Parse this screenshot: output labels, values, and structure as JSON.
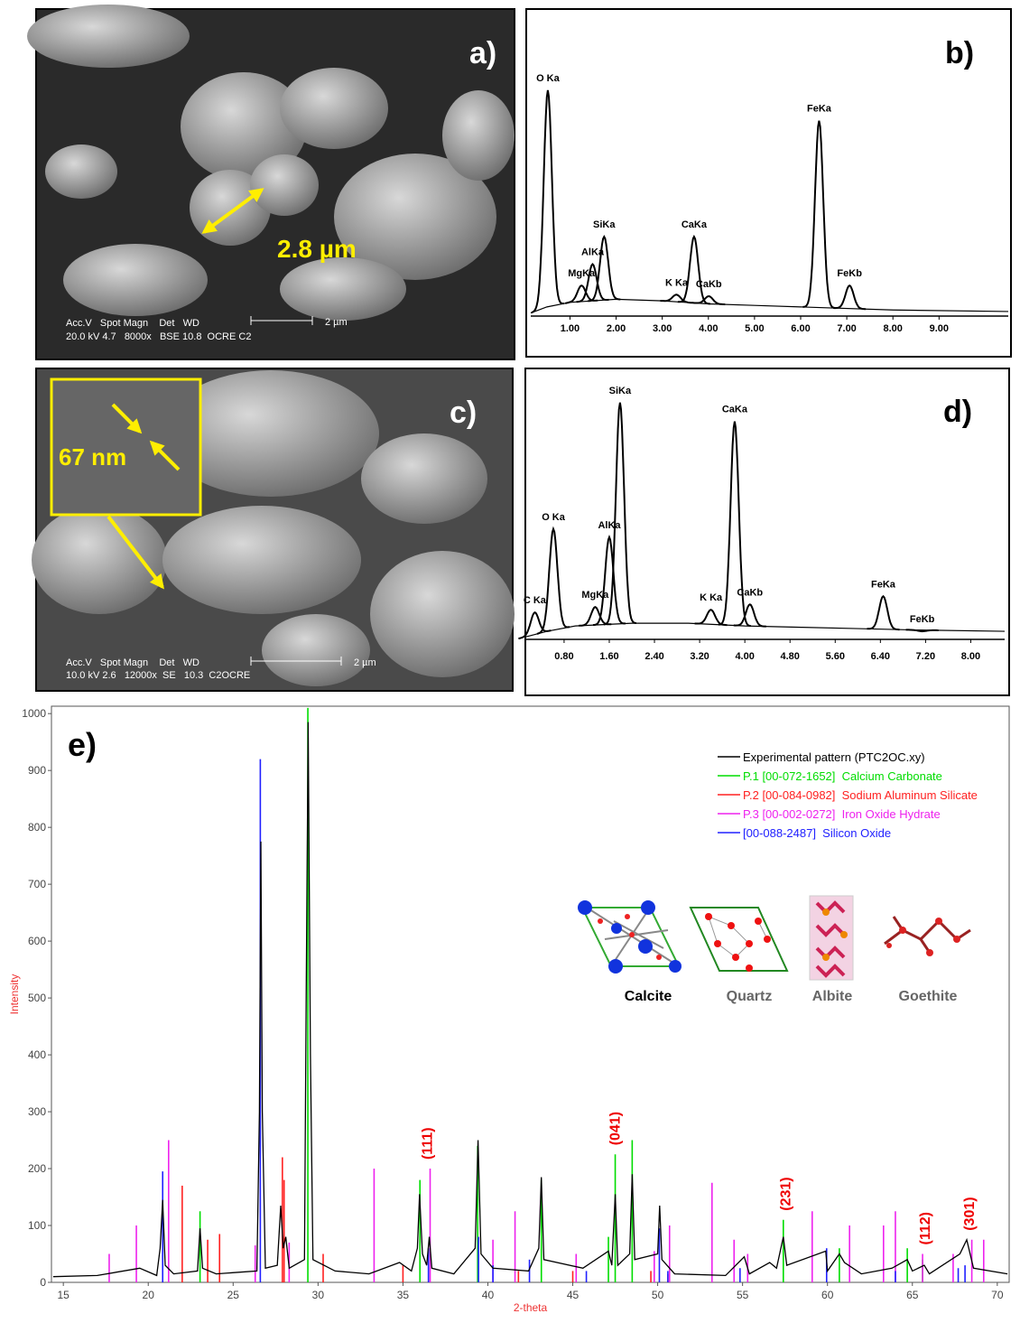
{
  "panels": {
    "a": {
      "label": "a)",
      "scale_text": "2.8 µm",
      "info_head": "Acc.V   Spot Magn    Det   WD",
      "info_values": "20.0 kV 4.7   8000x   BSE 10.8  OCRE C2",
      "scale_bar": "2 µm"
    },
    "c": {
      "label": "c)",
      "scale_text": "67 nm",
      "info_head": "Acc.V   Spot Magn    Det   WD",
      "info_values": "10.0 kV 2.6   12000x  SE   10.3  C2OCRE",
      "scale_bar": "2 µm"
    }
  },
  "chart_data": [
    {
      "type": "spectrum",
      "panel_label": "b)",
      "xlim": [
        0.15,
        10.5
      ],
      "ylim": [
        0,
        100
      ],
      "xticks": [
        {
          "value": 1,
          "label": "1.00"
        },
        {
          "value": 2,
          "label": "2.00"
        },
        {
          "value": 3,
          "label": "3.00"
        },
        {
          "value": 4,
          "label": "4.00"
        },
        {
          "value": 5,
          "label": "5.00"
        },
        {
          "value": 6,
          "label": "6.00"
        },
        {
          "value": 7,
          "label": "7.00"
        },
        {
          "value": 8,
          "label": "8.00"
        },
        {
          "value": 9,
          "label": "9.00"
        }
      ],
      "background": {
        "x": [
          0.15,
          0.5,
          1,
          2,
          3,
          4,
          5,
          6,
          8,
          10.5
        ],
        "values": [
          1,
          3,
          4.5,
          5.5,
          5,
          4,
          3.5,
          3,
          2,
          1.5
        ]
      },
      "peaks": {
        "labels": [
          "O Ka",
          "MgKa",
          "AlKa",
          "SiKa",
          "K Ka",
          "CaKa",
          "CaKb",
          "FeKa",
          "FeKb"
        ],
        "x": [
          0.52,
          1.25,
          1.49,
          1.74,
          3.31,
          3.69,
          4.01,
          6.4,
          7.06
        ],
        "values": [
          74,
          10,
          17,
          26,
          7,
          26,
          6.5,
          64,
          10
        ]
      }
    },
    {
      "type": "spectrum",
      "panel_label": "d)",
      "xlim": [
        0.13,
        8.6
      ],
      "ylim": [
        0,
        100
      ],
      "xticks": [
        {
          "value": 0.8,
          "label": "0.80"
        },
        {
          "value": 1.6,
          "label": "1.60"
        },
        {
          "value": 2.4,
          "label": "2.40"
        },
        {
          "value": 3.2,
          "label": "3.20"
        },
        {
          "value": 4,
          "label": "4.00"
        },
        {
          "value": 4.8,
          "label": "4.80"
        },
        {
          "value": 5.6,
          "label": "5.60"
        },
        {
          "value": 6.4,
          "label": "6.40"
        },
        {
          "value": 7.2,
          "label": "7.20"
        },
        {
          "value": 8,
          "label": "8.00"
        }
      ],
      "background": {
        "x": [
          0.13,
          0.5,
          1,
          2,
          3,
          4,
          5,
          6,
          7,
          8.6
        ],
        "values": [
          1,
          3,
          5,
          6,
          6,
          5,
          4.5,
          4,
          3.5,
          3
        ]
      },
      "peaks": {
        "labels": [
          "C Ka",
          "O Ka",
          "MgKa",
          "AlKa",
          "SiKa",
          "K Ka",
          "CaKa",
          "CaKb",
          "FeKa",
          "FeKb"
        ],
        "x": [
          0.28,
          0.61,
          1.35,
          1.6,
          1.79,
          3.4,
          3.82,
          4.09,
          6.45,
          7.14
        ],
        "values": [
          10,
          41,
          12,
          38,
          88,
          11,
          81,
          13,
          16,
          3
        ]
      }
    },
    {
      "type": "xrd",
      "panel_label": "e)",
      "xlabel": "2-theta",
      "ylabel": "Intensity",
      "xlim": [
        14.3,
        70.7
      ],
      "ylim": [
        0,
        1013
      ],
      "xticks": [
        15,
        20,
        25,
        30,
        35,
        40,
        45,
        50,
        55,
        60,
        65,
        70
      ],
      "yticks": [
        0,
        100,
        200,
        300,
        400,
        500,
        600,
        700,
        800,
        900,
        1000
      ],
      "series": [
        {
          "name": "Experimental pattern (PTC2OC.xy)",
          "color": "#000000",
          "style": "line",
          "x": [
            14.4,
            17,
            19.5,
            20.5,
            20.7,
            20.85,
            21,
            21.5,
            22.9,
            23.05,
            23.2,
            24,
            26.4,
            26.55,
            26.63,
            26.72,
            26.9,
            27.6,
            27.8,
            27.95,
            28.1,
            28.3,
            29.2,
            29.3,
            29.42,
            29.55,
            29.7,
            31,
            33,
            34.8,
            35.5,
            35.85,
            35.98,
            36.15,
            36.4,
            36.55,
            36.7,
            38,
            39.25,
            39.42,
            39.6,
            40.3,
            42.4,
            43,
            43.15,
            43.3,
            45.6,
            47.1,
            47.3,
            47.5,
            47.65,
            48.35,
            48.5,
            48.65,
            50,
            50.12,
            50.25,
            51,
            54,
            55.1,
            55.4,
            56.6,
            57,
            57.4,
            57.6,
            59.9,
            60,
            60.7,
            61,
            62,
            63.8,
            64.7,
            65,
            65.7,
            66,
            67.8,
            68.2,
            68.6,
            70.6
          ],
          "values": [
            10,
            12,
            25,
            12,
            60,
            145,
            30,
            15,
            20,
            95,
            25,
            15,
            20,
            300,
            775,
            300,
            25,
            30,
            135,
            60,
            80,
            25,
            40,
            500,
            985,
            400,
            40,
            20,
            15,
            35,
            20,
            60,
            155,
            50,
            30,
            80,
            25,
            15,
            60,
            250,
            50,
            25,
            20,
            60,
            185,
            40,
            25,
            55,
            30,
            155,
            30,
            50,
            190,
            40,
            50,
            135,
            40,
            15,
            12,
            45,
            15,
            35,
            25,
            80,
            30,
            55,
            20,
            50,
            35,
            15,
            25,
            40,
            20,
            30,
            15,
            50,
            75,
            25,
            15
          ]
        },
        {
          "name": "P.1 [00-072-1652]  Calcium Carbonate",
          "color": "#00dd00",
          "style": "sticks",
          "x": [
            23.05,
            29.4,
            36,
            39.4,
            43.15,
            47.1,
            47.5,
            48.5,
            57.4,
            60.7,
            64.7,
            65.6
          ],
          "values": [
            125,
            1010,
            180,
            240,
            180,
            80,
            225,
            250,
            110,
            60,
            60,
            40
          ]
        },
        {
          "name": "P.2 [00-084-0982]  Sodium Aluminum Silicate",
          "color": "#ff2020",
          "style": "sticks",
          "x": [
            22,
            23.5,
            24.2,
            27.9,
            28,
            30.3,
            35,
            41.8,
            45,
            49.6,
            50.6
          ],
          "values": [
            170,
            75,
            85,
            220,
            180,
            50,
            30,
            20,
            20,
            20,
            15
          ]
        },
        {
          "name": "P.3 [00-002-0272]  Iron Oxide Hydrate",
          "color": "#ee22ee",
          "style": "sticks",
          "x": [
            17.7,
            19.3,
            21.2,
            26.3,
            28.3,
            33.3,
            36.6,
            40.3,
            41.6,
            45.2,
            49.8,
            50.7,
            53.2,
            54.5,
            55.3,
            59.1,
            61.3,
            63.3,
            64,
            65.6,
            67.4,
            68.5,
            69.2
          ],
          "values": [
            50,
            100,
            250,
            65,
            70,
            200,
            200,
            75,
            125,
            50,
            55,
            100,
            175,
            75,
            50,
            125,
            100,
            100,
            125,
            50,
            50,
            75,
            75
          ]
        },
        {
          "name": "[00-088-2487]  Silicon Oxide",
          "color": "#2020ff",
          "style": "sticks",
          "x": [
            20.85,
            26.6,
            36.5,
            39.45,
            40.3,
            42.45,
            45.8,
            50.1,
            50.6,
            54.85,
            59.95,
            64,
            67.7,
            68.1
          ],
          "values": [
            195,
            920,
            60,
            80,
            30,
            40,
            20,
            95,
            20,
            25,
            60,
            20,
            25,
            30
          ]
        }
      ],
      "annotations": [
        {
          "text": "(111)",
          "x": 36.4
        },
        {
          "text": "(041)",
          "x": 47.45
        },
        {
          "text": "(231)",
          "x": 57.5
        },
        {
          "text": "(112)",
          "x": 65.7
        },
        {
          "text": "(301)",
          "x": 68.3
        }
      ],
      "structures": [
        "Calcite",
        "Quartz",
        "Albite",
        "Goethite"
      ]
    }
  ]
}
